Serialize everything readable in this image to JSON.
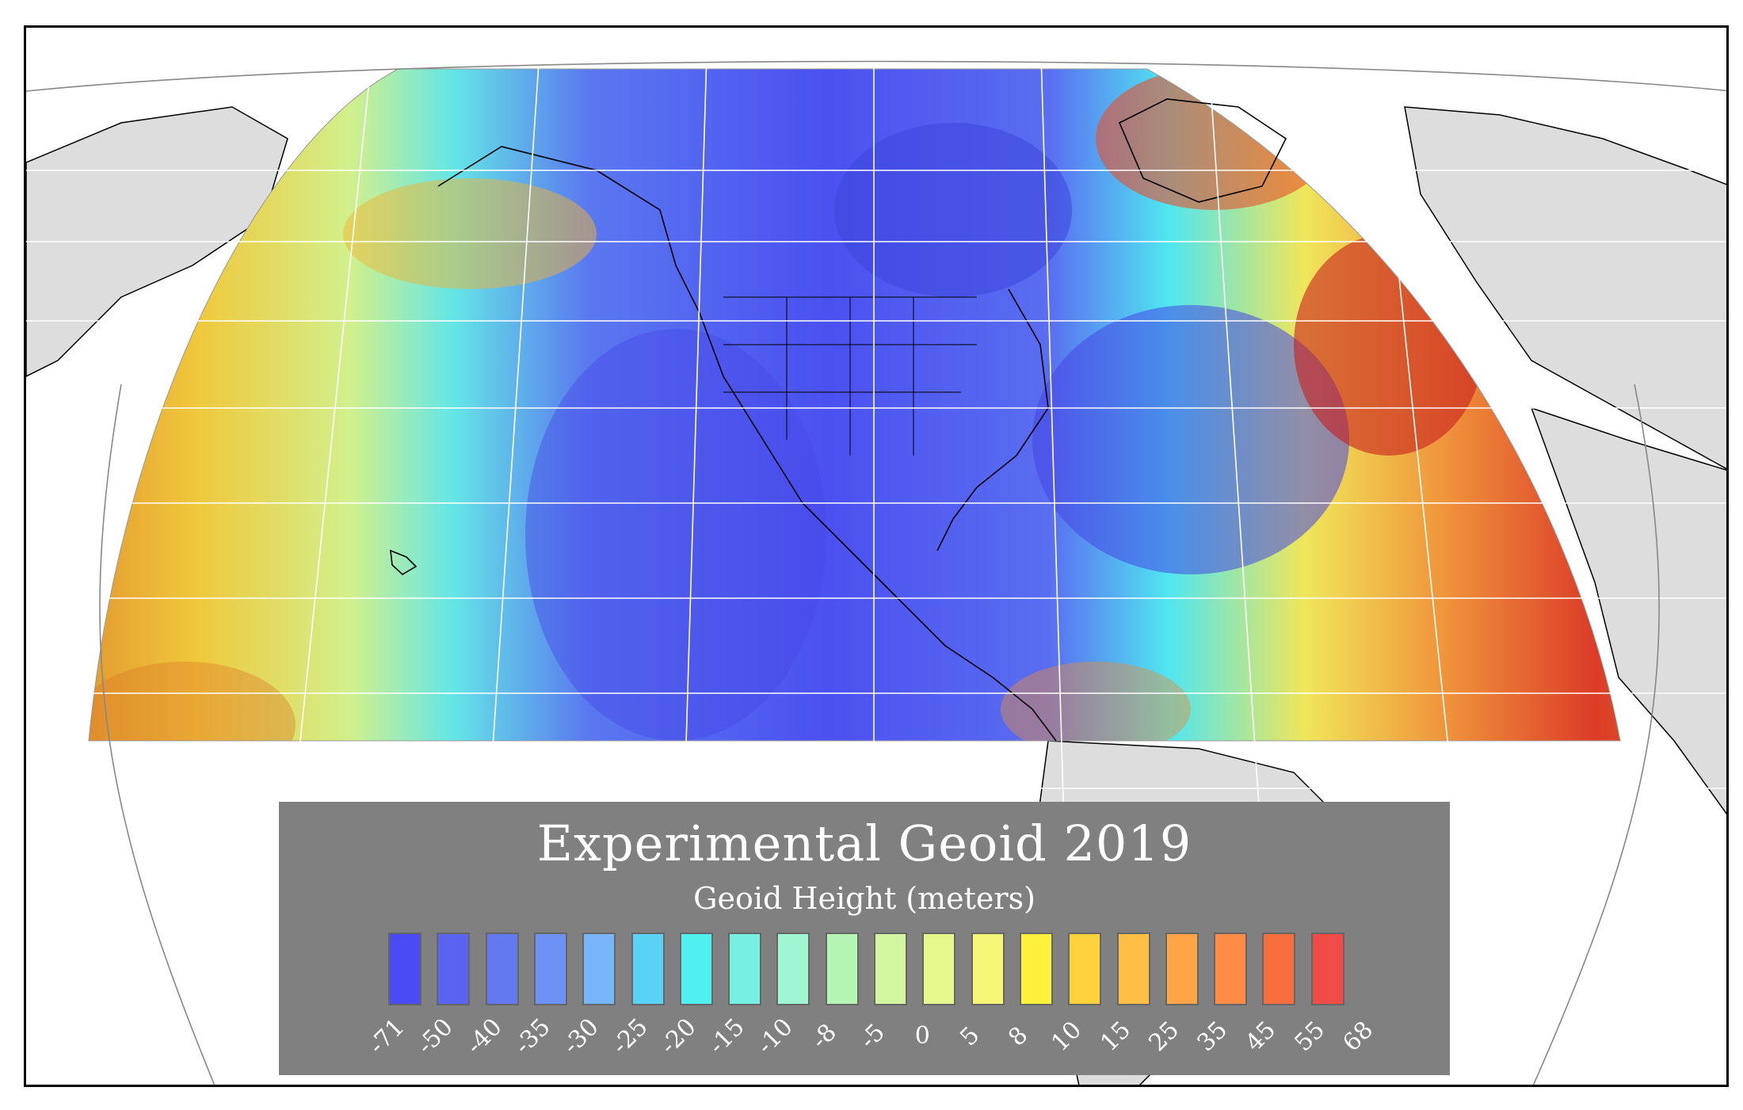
{
  "map": {
    "projection": "conic",
    "basemap_color": "#dddddd",
    "outline_color": "#000000",
    "graticule_color": "#ffffff"
  },
  "legend": {
    "title": "Experimental Geoid 2019",
    "subtitle": "Geoid Height (meters)",
    "classes": [
      {
        "label": "-71",
        "color": "#4b4bf5"
      },
      {
        "label": "-50",
        "color": "#5a64f0"
      },
      {
        "label": "-40",
        "color": "#6478f0"
      },
      {
        "label": "-35",
        "color": "#6e91f5"
      },
      {
        "label": "-30",
        "color": "#78b4fa"
      },
      {
        "label": "-25",
        "color": "#5ad2f5"
      },
      {
        "label": "-20",
        "color": "#50f0f0"
      },
      {
        "label": "-15",
        "color": "#78f0e1"
      },
      {
        "label": "-10",
        "color": "#a0f5d2"
      },
      {
        "label": "-8",
        "color": "#b4f5b4"
      },
      {
        "label": "-5",
        "color": "#d2f5a0"
      },
      {
        "label": "0",
        "color": "#e6f78c"
      },
      {
        "label": "5",
        "color": "#f5f578"
      },
      {
        "label": "8",
        "color": "#fff03c"
      },
      {
        "label": "10",
        "color": "#ffd23c"
      },
      {
        "label": "15",
        "color": "#ffbe46"
      },
      {
        "label": "25",
        "color": "#ffa546"
      },
      {
        "label": "35",
        "color": "#ff8c46"
      },
      {
        "label": "45",
        "color": "#f56e3c"
      },
      {
        "label": "55",
        "color": "#f04b46"
      }
    ],
    "end_label": "68"
  }
}
